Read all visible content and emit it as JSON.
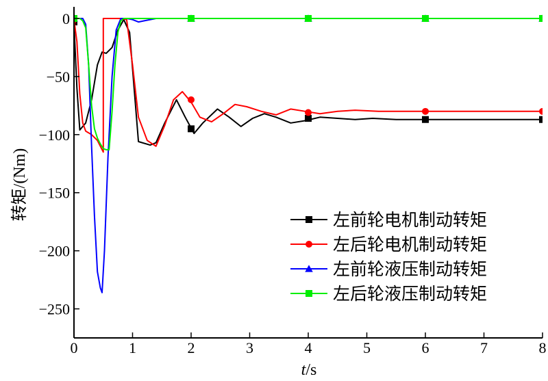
{
  "chart_data": {
    "type": "line",
    "title": "",
    "xlabel_italic": "t",
    "xlabel_unit": "/s",
    "ylabel": "转矩/(Nm)",
    "xlim": [
      0,
      8
    ],
    "ylim": [
      -275,
      10
    ],
    "x_ticks": [
      0,
      1,
      2,
      3,
      4,
      5,
      6,
      7,
      8
    ],
    "x_tick_labels": [
      "0",
      "1",
      "2",
      "3",
      "4",
      "5",
      "6",
      "7",
      "8"
    ],
    "y_ticks": [
      0,
      -50,
      -100,
      -150,
      -200,
      -250
    ],
    "y_tick_labels": [
      "0",
      "−50",
      "−100",
      "−150",
      "−200",
      "−250"
    ],
    "grid": false,
    "legend_position": "bottom-right",
    "series": [
      {
        "name": "左前轮电机制动转矩",
        "color": "#000000",
        "marker": "square",
        "x": [
          0,
          0.05,
          0.1,
          0.2,
          0.3,
          0.4,
          0.48,
          0.55,
          0.65,
          0.75,
          0.85,
          0.95,
          1.1,
          1.3,
          1.4,
          1.55,
          1.75,
          1.9,
          2.05,
          2.2,
          2.45,
          2.65,
          2.85,
          3.05,
          3.25,
          3.45,
          3.7,
          3.95,
          4.2,
          4.5,
          4.8,
          5.1,
          5.5,
          6,
          6.5,
          7,
          7.5,
          8
        ],
        "y": [
          -5,
          -60,
          -96,
          -90,
          -70,
          -40,
          -29,
          -30,
          -25,
          -10,
          -1,
          -12,
          -106,
          -109,
          -107,
          -90,
          -70,
          -85,
          -99,
          -90,
          -78,
          -85,
          -93,
          -86,
          -82,
          -85,
          -90,
          -88,
          -85,
          -86,
          -87,
          -86,
          -87,
          -87,
          -87,
          -87,
          -87,
          -87
        ],
        "marker_x": [
          0,
          2,
          4,
          6,
          8
        ],
        "marker_y": [
          -3,
          -95,
          -86,
          -87,
          -87
        ]
      },
      {
        "name": "左后轮电机制动转矩",
        "color": "#ff0000",
        "marker": "circle",
        "x": [
          0,
          0.05,
          0.1,
          0.15,
          0.2,
          0.3,
          0.4,
          0.5,
          0.5,
          0.8,
          0.9,
          1.0,
          1.1,
          1.25,
          1.4,
          1.55,
          1.7,
          1.85,
          2.0,
          2.15,
          2.35,
          2.55,
          2.75,
          2.95,
          3.2,
          3.45,
          3.7,
          3.95,
          4.2,
          4.5,
          4.8,
          5.2,
          5.6,
          6,
          6.5,
          7,
          7.5,
          8
        ],
        "y": [
          -1,
          -20,
          -65,
          -90,
          -97,
          -100,
          -105,
          -115,
          0,
          0,
          -1,
          -40,
          -85,
          -105,
          -110,
          -92,
          -70,
          -63,
          -72,
          -85,
          -89,
          -82,
          -74,
          -76,
          -80,
          -83,
          -78,
          -80,
          -82,
          -80,
          -79,
          -80,
          -80,
          -80,
          -80,
          -80,
          -80,
          -80
        ],
        "marker_x": [
          0,
          2,
          4,
          6,
          8
        ],
        "marker_y": [
          -1,
          -70,
          -81,
          -80,
          -80
        ]
      },
      {
        "name": "左前轮液压制动转矩",
        "color": "#0000ff",
        "marker": "triangle",
        "x": [
          0,
          0.15,
          0.2,
          0.25,
          0.3,
          0.35,
          0.4,
          0.45,
          0.48,
          0.52,
          0.58,
          0.65,
          0.72,
          0.8,
          0.9,
          1.0,
          1.1,
          1.2,
          1.4,
          1.6,
          2,
          3,
          4,
          5,
          6,
          7,
          8
        ],
        "y": [
          0,
          0,
          -5,
          -40,
          -110,
          -170,
          -218,
          -232,
          -236,
          -200,
          -120,
          -50,
          -10,
          0,
          0,
          -1,
          -3,
          -2,
          0,
          0,
          0,
          0,
          0,
          0,
          0,
          0,
          0
        ],
        "marker_x": [
          0,
          2,
          4,
          6,
          8
        ],
        "marker_y": [
          0,
          0,
          0,
          0,
          0
        ]
      },
      {
        "name": "左后轮液压制动转矩",
        "color": "#00ee00",
        "marker": "square",
        "x": [
          0,
          0.1,
          0.15,
          0.2,
          0.25,
          0.3,
          0.35,
          0.4,
          0.45,
          0.5,
          0.55,
          0.6,
          0.65,
          0.7,
          0.75,
          0.8,
          0.85,
          0.9,
          1.0,
          1.2,
          1.5,
          2,
          3,
          4,
          5,
          6,
          7,
          8
        ],
        "y": [
          0,
          0,
          -2,
          -8,
          -40,
          -75,
          -95,
          -103,
          -108,
          -112,
          -113,
          -113,
          -80,
          -40,
          -12,
          -2,
          0,
          0,
          0,
          0,
          0,
          0,
          0,
          0,
          0,
          0,
          0,
          0
        ],
        "marker_x": [
          0,
          2,
          4,
          6,
          8
        ],
        "marker_y": [
          0,
          0,
          0,
          0,
          0
        ]
      }
    ]
  }
}
